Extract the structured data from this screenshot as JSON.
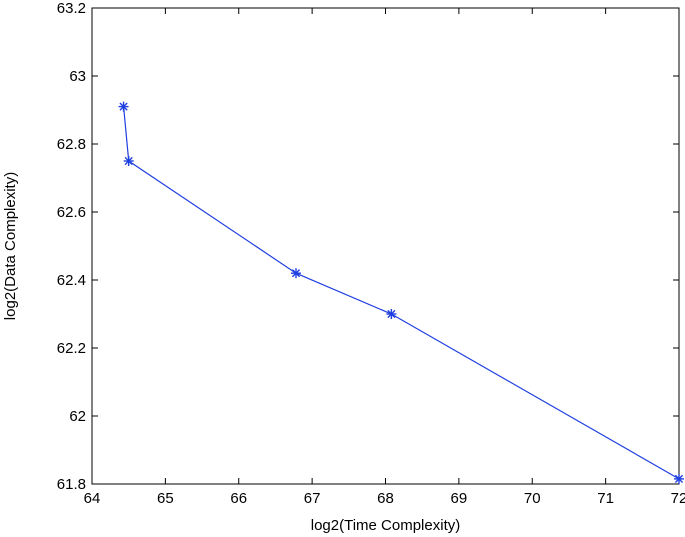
{
  "chart_data": {
    "type": "line",
    "title": "",
    "xlabel": "log2(Time Complexity)",
    "ylabel": "log2(Data Complexity)",
    "xlim": [
      64,
      72
    ],
    "ylim": [
      61.8,
      63.2
    ],
    "xticks": [
      64,
      65,
      66,
      67,
      68,
      69,
      70,
      71,
      72
    ],
    "xtick_labels": [
      "64",
      "65",
      "66",
      "67",
      "68",
      "69",
      "70",
      "71",
      "72"
    ],
    "yticks": [
      61.8,
      62,
      62.2,
      62.4,
      62.6,
      62.8,
      63,
      63.2
    ],
    "ytick_labels": [
      "61.8",
      "62",
      "62.2",
      "62.4",
      "62.6",
      "62.8",
      "63",
      "63.2"
    ],
    "grid": false,
    "series": [
      {
        "marker": "asterisk",
        "color": "#1f3fe0",
        "x": [
          64.43,
          64.5,
          66.78,
          68.08,
          72.0
        ],
        "y": [
          62.91,
          62.75,
          62.42,
          62.3,
          61.815
        ]
      }
    ]
  }
}
